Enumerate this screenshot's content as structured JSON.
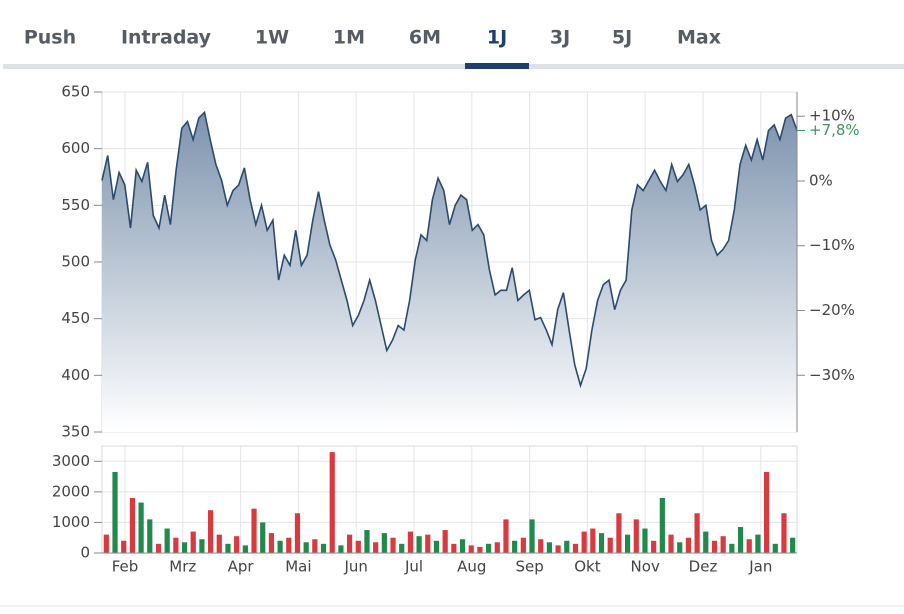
{
  "tabs": [
    "Push",
    "Intraday",
    "1W",
    "1M",
    "6M",
    "1J",
    "3J",
    "5J",
    "Max"
  ],
  "active_tab": 5,
  "chart_data": [
    {
      "type": "line",
      "series": [
        {
          "color": "#2b4a6f",
          "values": [
            572,
            594,
            555,
            579,
            568,
            530,
            581,
            571,
            588,
            541,
            530,
            559,
            533,
            581,
            618,
            624,
            608,
            627,
            632,
            608,
            586,
            572,
            550,
            563,
            568,
            583,
            555,
            533,
            550,
            528,
            537,
            484,
            506,
            497,
            528,
            497,
            506,
            537,
            562,
            537,
            515,
            502,
            484,
            466,
            444,
            453,
            466,
            484,
            466,
            444,
            422,
            431,
            444,
            440,
            466,
            502,
            524,
            519,
            555,
            574,
            563,
            533,
            550,
            559,
            555,
            528,
            533,
            524,
            493,
            471,
            475,
            475,
            495,
            466,
            471,
            475,
            449,
            451,
            440,
            427,
            458,
            473,
            440,
            409,
            391,
            406,
            440,
            466,
            480,
            484,
            458,
            475,
            484,
            546,
            568,
            563,
            572,
            581,
            571,
            563,
            586,
            571,
            577,
            586,
            568,
            546,
            550,
            519,
            506,
            511,
            519,
            546,
            586,
            603,
            590,
            608,
            590,
            616,
            621,
            608,
            627,
            630,
            616
          ]
        }
      ],
      "ylim": [
        350,
        650
      ],
      "yticks": [
        350,
        400,
        450,
        500,
        550,
        600,
        650
      ],
      "y2lim": [
        -38.76,
        13.74
      ],
      "y2ticks": [
        {
          "value": 10,
          "label": "+10%"
        },
        {
          "value": 0,
          "label": "0%"
        },
        {
          "value": -10,
          "label": "−10%"
        },
        {
          "value": -20,
          "label": "−20%"
        },
        {
          "value": -30,
          "label": "−30%"
        }
      ],
      "last_value_label": {
        "value": 7.8,
        "label": "+7,8%",
        "color": "#3a9a5a"
      },
      "grid": true
    },
    {
      "type": "bar",
      "x_labels": [
        "Feb",
        "Mrz",
        "Apr",
        "Mai",
        "Jun",
        "Jul",
        "Aug",
        "Sep",
        "Okt",
        "Nov",
        "Dez",
        "Jan"
      ],
      "series": [
        {
          "color": "#1f8a4c",
          "values": [
            null,
            2650,
            null,
            null,
            1650,
            1100,
            null,
            800,
            null,
            350,
            null,
            450,
            null,
            null,
            300,
            null,
            250,
            null,
            1000,
            null,
            400,
            null,
            null,
            350,
            null,
            300,
            null,
            250,
            null,
            null,
            750,
            null,
            650,
            null,
            300,
            null,
            550,
            null,
            400,
            null,
            null,
            450,
            null,
            null,
            300,
            null,
            null,
            400,
            null,
            1100,
            null,
            350,
            null,
            400,
            null,
            null,
            null,
            650,
            null,
            null,
            600,
            null,
            800,
            null,
            1800,
            null,
            350,
            null,
            null,
            700,
            null,
            null,
            300,
            850,
            null,
            600,
            null,
            300,
            null,
            500
          ]
        },
        {
          "color": "#d93a40",
          "values": [
            600,
            null,
            400,
            1800,
            null,
            null,
            300,
            null,
            500,
            null,
            700,
            null,
            1400,
            600,
            null,
            550,
            null,
            1450,
            null,
            650,
            null,
            500,
            1300,
            null,
            450,
            null,
            3300,
            null,
            600,
            400,
            null,
            350,
            null,
            500,
            null,
            700,
            null,
            600,
            null,
            750,
            300,
            null,
            250,
            200,
            null,
            350,
            1100,
            null,
            500,
            null,
            450,
            null,
            250,
            null,
            300,
            700,
            800,
            null,
            500,
            1300,
            null,
            1100,
            null,
            400,
            null,
            600,
            null,
            500,
            1300,
            null,
            400,
            550,
            null,
            null,
            450,
            null,
            2650,
            null,
            1300,
            null
          ]
        }
      ],
      "ylim": [
        0,
        3500
      ],
      "yticks": [
        0,
        1000,
        2000,
        3000
      ],
      "grid": true
    }
  ]
}
